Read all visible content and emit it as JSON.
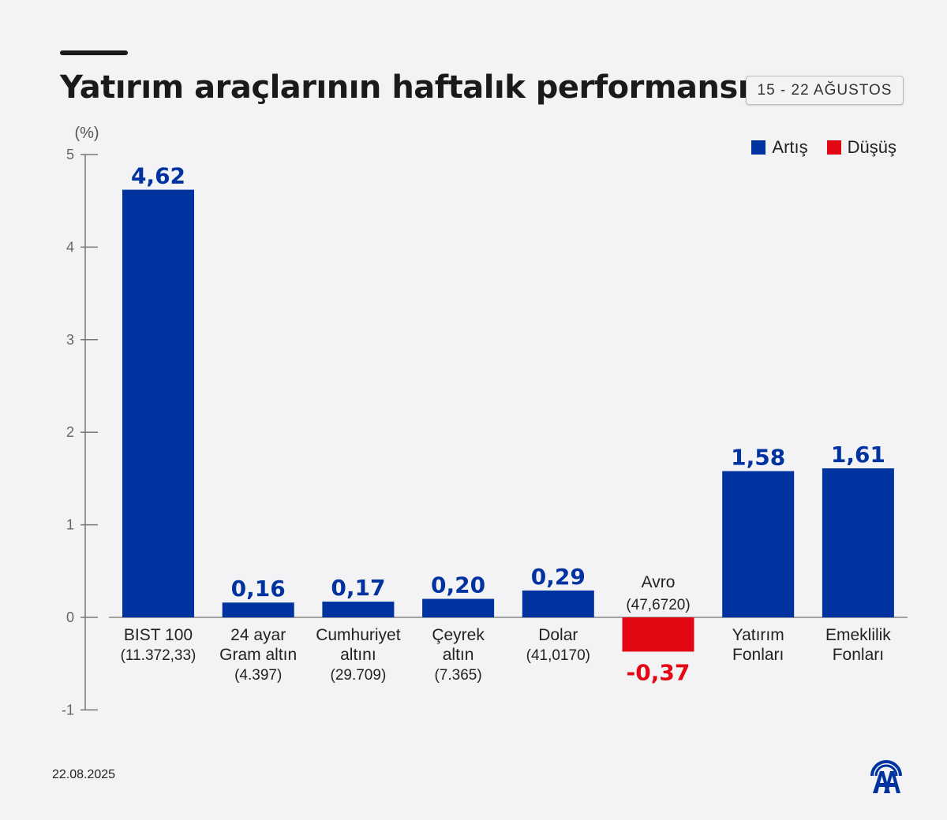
{
  "header": {
    "title": "Yatırım araçlarının haftalık performansı",
    "date_range": "15 - 22 AĞUSTOS"
  },
  "legend": [
    {
      "label": "Artış",
      "color": "#0033a0"
    },
    {
      "label": "Düşüş",
      "color": "#e30613"
    }
  ],
  "footer": {
    "date": "22.08.2025",
    "logo": "AA"
  },
  "chart_data": {
    "type": "bar",
    "title": "Yatırım araçlarının haftalık performansı",
    "ylabel": "(%)",
    "ylim": [
      -1,
      5
    ],
    "yticks": [
      -1,
      0,
      1,
      2,
      3,
      4,
      5
    ],
    "grid": false,
    "legend_position": "top-right",
    "categories": [
      [
        "BIST 100",
        "(11.372,33)"
      ],
      [
        "24 ayar",
        "Gram altın",
        "(4.397)"
      ],
      [
        "Cumhuriyet",
        "altını",
        "(29.709)"
      ],
      [
        "Çeyrek",
        "altın",
        "(7.365)"
      ],
      [
        "Dolar",
        "(41,0170)"
      ],
      [
        "Avro",
        "(47,6720)"
      ],
      [
        "Yatırım",
        "Fonları"
      ],
      [
        "Emeklilik",
        "Fonları"
      ]
    ],
    "values": [
      4.62,
      0.16,
      0.17,
      0.2,
      0.29,
      -0.37,
      1.58,
      1.61
    ],
    "value_labels": [
      "4,62",
      "0,16",
      "0,17",
      "0,20",
      "0,29",
      "-0,37",
      "1,58",
      "1,61"
    ],
    "colors": {
      "positive": "#0033a0",
      "negative": "#e30613"
    }
  }
}
